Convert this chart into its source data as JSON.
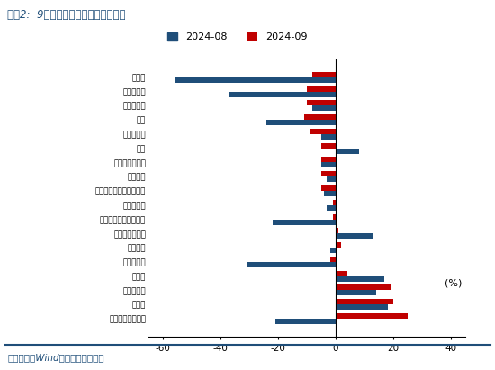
{
  "title": "图表2:  9月四大税种收入增速表现分化",
  "categories": [
    "印花税",
    "车辆购置税",
    "国内消费税",
    "契税",
    "国内增值税",
    "关税",
    "城市维护建设税",
    "税收收入",
    "进口环节增值税和消费税",
    "个人所得税",
    "土地和房地产相关税收",
    "城镇土地使用税",
    "其他税收",
    "土地增值税",
    "资源税",
    "耕地占用税",
    "房产税",
    "外贸企业出口退税"
  ],
  "values_2024_08": [
    -56,
    -37,
    -8,
    -24,
    -5,
    8,
    -5,
    -3,
    -4,
    -3,
    -22,
    13,
    -2,
    -31,
    17,
    14,
    18,
    -21
  ],
  "values_2024_09": [
    -8,
    -10,
    -10,
    -11,
    -9,
    -5,
    -5,
    -5,
    -5,
    -1,
    -1,
    1,
    2,
    -2,
    4,
    19,
    20,
    25
  ],
  "color_2024_08": "#1F4E79",
  "color_2024_09": "#C00000",
  "xlim_min": -65,
  "xlim_max": 45,
  "xticks": [
    -60,
    -40,
    -20,
    0,
    20,
    40
  ],
  "source_text": "资料来源：Wind，国盛证券研究所",
  "background_color": "#FFFFFF",
  "title_color": "#1F4E79",
  "legend_labels": [
    "2024-08",
    "2024-09"
  ]
}
